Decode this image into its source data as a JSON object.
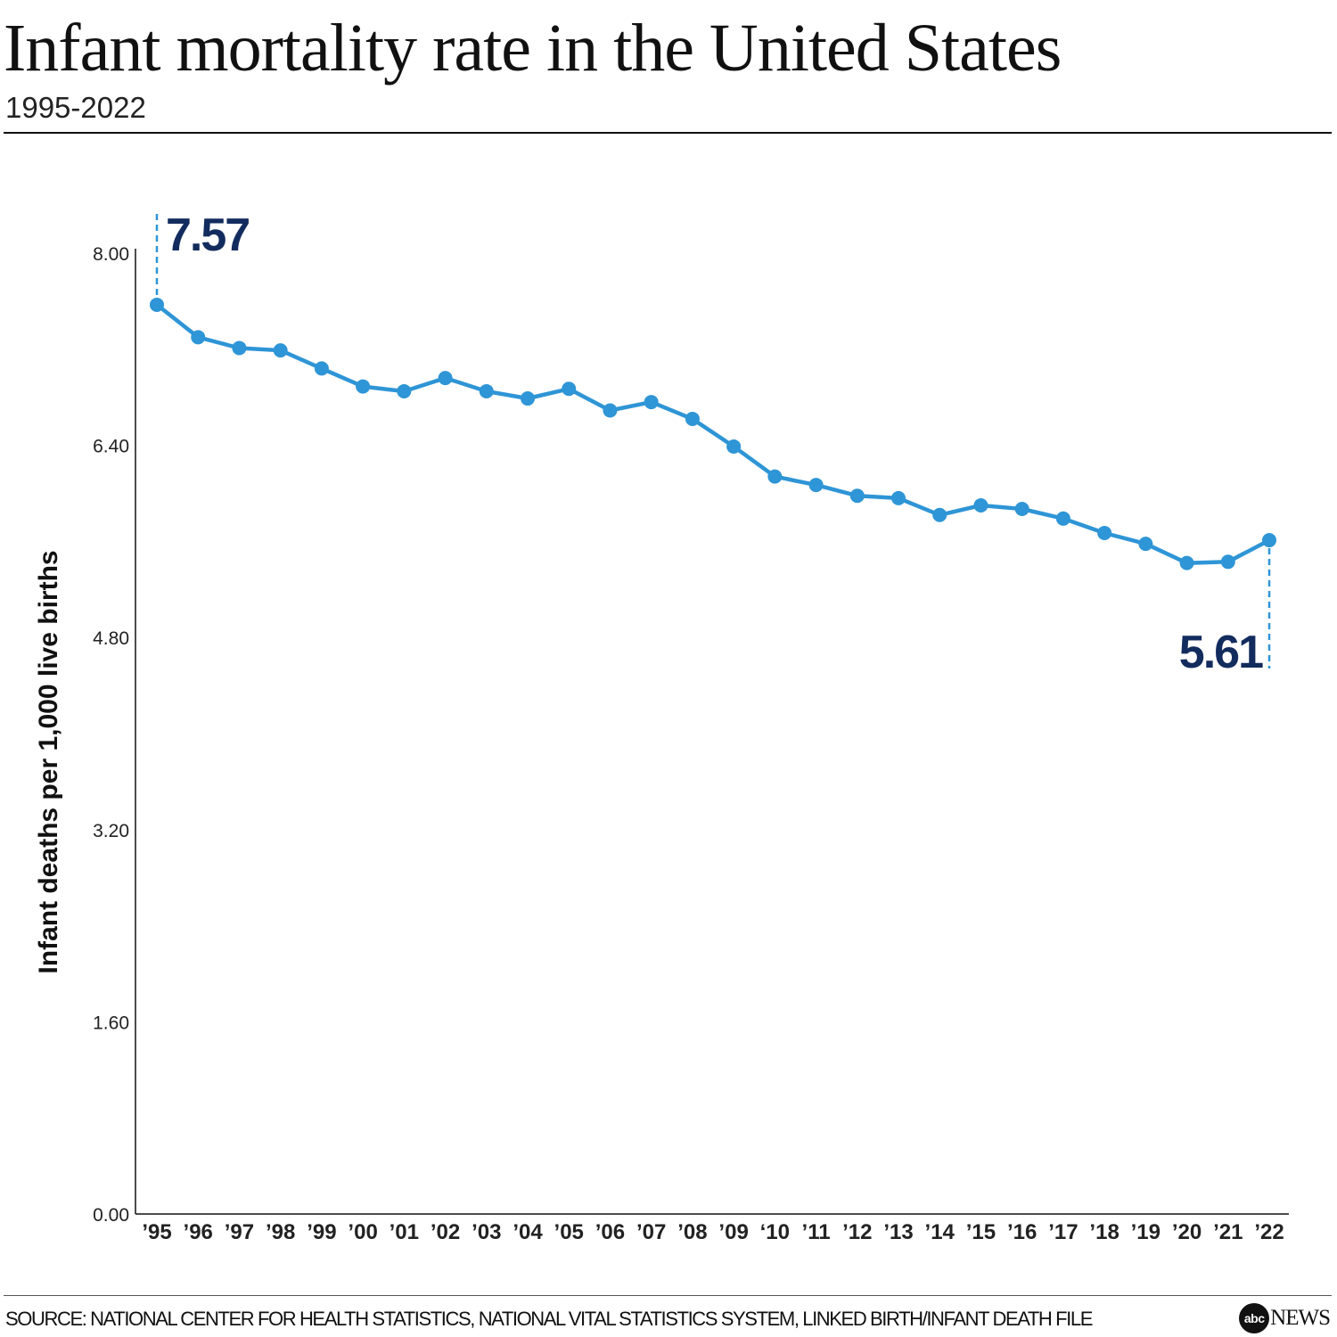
{
  "header": {
    "title": "Infant mortality rate in the United States",
    "subtitle": "1995-2022"
  },
  "chart_data": {
    "type": "line",
    "title": "Infant mortality rate in the United States",
    "subtitle": "1995-2022",
    "ylabel": "Infant deaths per 1,000 live births",
    "xlabel": "",
    "ylim": [
      0,
      8
    ],
    "y_ticks": [
      "0.00",
      "1.60",
      "3.20",
      "4.80",
      "6.40",
      "8.00"
    ],
    "y_tick_values": [
      0,
      1.6,
      3.2,
      4.8,
      6.4,
      8.0
    ],
    "categories": [
      "’95",
      "’96",
      "’97",
      "’98",
      "’99",
      "’00",
      "’01",
      "’02",
      "’03",
      "’04",
      "’05",
      "’06",
      "’07",
      "’08",
      "’09",
      "‘10",
      "’11",
      "’12",
      "’13",
      "’14",
      "’15",
      "’16",
      "’17",
      "’18",
      "’19",
      "’20",
      "’21",
      "’22"
    ],
    "series": [
      {
        "values": [
          7.57,
          7.3,
          7.21,
          7.19,
          7.04,
          6.89,
          6.85,
          6.96,
          6.85,
          6.79,
          6.87,
          6.69,
          6.76,
          6.62,
          6.39,
          6.14,
          6.07,
          5.98,
          5.96,
          5.82,
          5.9,
          5.87,
          5.79,
          5.67,
          5.58,
          5.42,
          5.43,
          5.61
        ],
        "color": "#2e95d6"
      }
    ],
    "annotations": [
      {
        "label": "7.57",
        "category": "’95",
        "value": 7.57,
        "position": "above"
      },
      {
        "label": "5.61",
        "category": "’22",
        "value": 5.61,
        "position": "below"
      }
    ],
    "annotation_color": "#132c5e",
    "grid": false
  },
  "footer": {
    "source": "SOURCE: NATIONAL CENTER FOR HEALTH STATISTICS, NATIONAL VITAL STATISTICS SYSTEM, LINKED BIRTH/INFANT DEATH FILE",
    "logo_abc": "abc",
    "logo_news": "NEWS"
  }
}
